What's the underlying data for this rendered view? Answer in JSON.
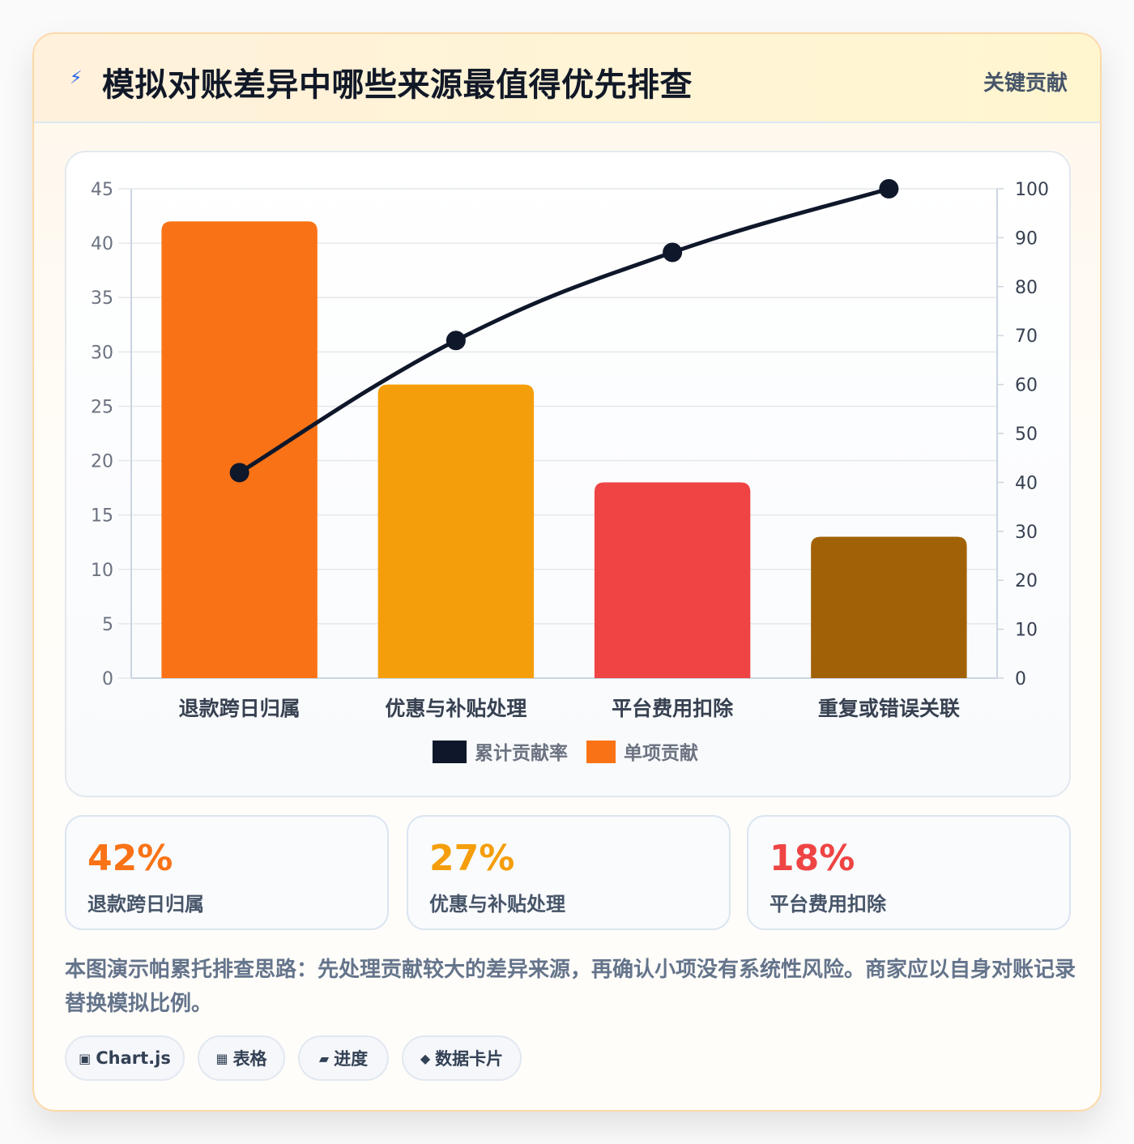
{
  "header": {
    "icon": "lightning-icon",
    "title": "模拟对账差异中哪些来源最值得优先排查",
    "badge": "关键贡献"
  },
  "chart_data": {
    "type": "bar",
    "categories": [
      "退款跨日归属",
      "优惠与补贴处理",
      "平台费用扣除",
      "重复或错误关联"
    ],
    "series": [
      {
        "name": "单项贡献",
        "type": "bar",
        "axis": "left",
        "values": [
          42,
          27,
          18,
          13
        ],
        "colors": [
          "#f97316",
          "#f59e0b",
          "#ef4444",
          "#a16207"
        ]
      },
      {
        "name": "累计贡献率",
        "type": "line",
        "axis": "right",
        "values": [
          42,
          69,
          87,
          100
        ],
        "color": "#0f172a"
      }
    ],
    "left_axis": {
      "min": 0,
      "max": 45,
      "ticks": [
        0,
        5,
        10,
        15,
        20,
        25,
        30,
        35,
        40,
        45
      ]
    },
    "right_axis": {
      "min": 0,
      "max": 100,
      "ticks": [
        0,
        10,
        20,
        30,
        40,
        50,
        60,
        70,
        80,
        90,
        100
      ]
    },
    "legend": {
      "position": "bottom",
      "items": [
        "累计贡献率",
        "单项贡献"
      ]
    },
    "grid": true
  },
  "stats": [
    {
      "value": "42%",
      "label": "退款跨日归属",
      "color": "#f97316"
    },
    {
      "value": "27%",
      "label": "优惠与补贴处理",
      "color": "#f59e0b"
    },
    {
      "value": "18%",
      "label": "平台费用扣除",
      "color": "#ef4444"
    }
  ],
  "note": "本图演示帕累托排查思路：先处理贡献较大的差异来源，再确认小项没有系统性风险。商家应以自身对账记录替换模拟比例。",
  "chips": [
    {
      "icon": "▣",
      "label": "Chart.js"
    },
    {
      "icon": "▦",
      "label": "表格"
    },
    {
      "icon": "▰",
      "label": "进度"
    },
    {
      "icon": "◆",
      "label": "数据卡片"
    }
  ]
}
